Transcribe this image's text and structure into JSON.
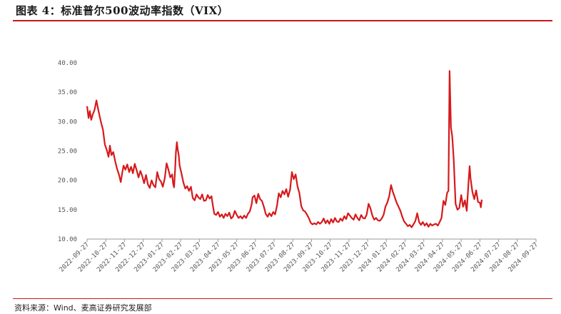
{
  "header": {
    "title": "图表 4：标准普尔500波动率指数（VIX）"
  },
  "footer": {
    "source": "资料来源：Wind、麦高证券研究发展部"
  },
  "chart_data": {
    "type": "line",
    "title": "图表 4：标准普尔500波动率指数（VIX）",
    "xlabel": "",
    "ylabel": "",
    "ylim": [
      10,
      40
    ],
    "yticks": [
      "40.00",
      "35.00",
      "30.00",
      "25.00",
      "20.00",
      "15.00",
      "10.00"
    ],
    "ytick_values": [
      40,
      35,
      30,
      25,
      20,
      15,
      10
    ],
    "x_ticks": [
      "2022-09-27",
      "2022-10-27",
      "2022-11-27",
      "2022-12-27",
      "2023-01-27",
      "2023-02-27",
      "2023-03-27",
      "2023-04-27",
      "2023-05-27",
      "2023-06-27",
      "2023-07-27",
      "2023-08-27",
      "2023-09-27",
      "2023-10-27",
      "2023-11-27",
      "2023-12-27",
      "2024-01-27",
      "2024-02-27",
      "2024-03-27",
      "2024-04-27",
      "2024-05-27",
      "2024-06-27",
      "2024-07-27",
      "2024-08-27",
      "2024-09-27"
    ],
    "grid": false,
    "legend": "none",
    "line_color": "#d7191c",
    "series": [
      {
        "values": [
          [
            0.0,
            32.6
          ],
          [
            0.08,
            30.6
          ],
          [
            0.15,
            31.8
          ],
          [
            0.22,
            30.3
          ],
          [
            0.3,
            31.2
          ],
          [
            0.4,
            32.0
          ],
          [
            0.5,
            33.6
          ],
          [
            0.58,
            32.3
          ],
          [
            0.66,
            31.1
          ],
          [
            0.75,
            29.8
          ],
          [
            0.85,
            28.6
          ],
          [
            0.95,
            26.1
          ],
          [
            1.05,
            25.2
          ],
          [
            1.15,
            24.0
          ],
          [
            1.22,
            25.9
          ],
          [
            1.3,
            24.3
          ],
          [
            1.4,
            24.8
          ],
          [
            1.5,
            23.3
          ],
          [
            1.6,
            22.0
          ],
          [
            1.7,
            21.0
          ],
          [
            1.8,
            19.7
          ],
          [
            1.88,
            21.3
          ],
          [
            1.95,
            22.5
          ],
          [
            2.05,
            21.8
          ],
          [
            2.15,
            22.7
          ],
          [
            2.25,
            21.4
          ],
          [
            2.35,
            22.3
          ],
          [
            2.45,
            21.2
          ],
          [
            2.55,
            22.8
          ],
          [
            2.65,
            21.7
          ],
          [
            2.75,
            20.5
          ],
          [
            2.85,
            21.6
          ],
          [
            2.95,
            20.7
          ],
          [
            3.05,
            19.5
          ],
          [
            3.15,
            20.9
          ],
          [
            3.25,
            19.3
          ],
          [
            3.35,
            18.7
          ],
          [
            3.45,
            20.0
          ],
          [
            3.55,
            19.2
          ],
          [
            3.65,
            18.8
          ],
          [
            3.75,
            21.4
          ],
          [
            3.85,
            20.2
          ],
          [
            3.95,
            19.8
          ],
          [
            4.05,
            18.9
          ],
          [
            4.15,
            20.3
          ],
          [
            4.25,
            22.9
          ],
          [
            4.35,
            21.8
          ],
          [
            4.45,
            20.5
          ],
          [
            4.55,
            21.0
          ],
          [
            4.6,
            19.4
          ],
          [
            4.65,
            18.8
          ],
          [
            4.7,
            21.5
          ],
          [
            4.75,
            24.8
          ],
          [
            4.8,
            26.5
          ],
          [
            4.85,
            25.2
          ],
          [
            4.9,
            24.3
          ],
          [
            4.95,
            22.5
          ],
          [
            5.05,
            21.1
          ],
          [
            5.15,
            19.6
          ],
          [
            5.25,
            18.6
          ],
          [
            5.35,
            19.0
          ],
          [
            5.45,
            18.2
          ],
          [
            5.55,
            18.9
          ],
          [
            5.65,
            17.0
          ],
          [
            5.75,
            16.6
          ],
          [
            5.85,
            17.6
          ],
          [
            5.95,
            17.1
          ],
          [
            6.05,
            16.8
          ],
          [
            6.15,
            17.6
          ],
          [
            6.25,
            16.5
          ],
          [
            6.35,
            16.6
          ],
          [
            6.45,
            17.5
          ],
          [
            6.55,
            16.9
          ],
          [
            6.65,
            17.3
          ],
          [
            6.72,
            15.8
          ],
          [
            6.8,
            14.3
          ],
          [
            6.9,
            14.1
          ],
          [
            7.0,
            14.6
          ],
          [
            7.1,
            13.8
          ],
          [
            7.2,
            14.2
          ],
          [
            7.3,
            13.6
          ],
          [
            7.4,
            14.3
          ],
          [
            7.5,
            13.9
          ],
          [
            7.6,
            14.5
          ],
          [
            7.7,
            13.5
          ],
          [
            7.8,
            13.8
          ],
          [
            7.9,
            14.8
          ],
          [
            8.0,
            14.1
          ],
          [
            8.1,
            13.6
          ],
          [
            8.2,
            13.9
          ],
          [
            8.3,
            13.5
          ],
          [
            8.4,
            14.0
          ],
          [
            8.5,
            13.6
          ],
          [
            8.6,
            14.3
          ],
          [
            8.7,
            14.7
          ],
          [
            8.8,
            15.9
          ],
          [
            8.85,
            17.1
          ],
          [
            8.95,
            17.4
          ],
          [
            9.05,
            16.1
          ],
          [
            9.15,
            17.7
          ],
          [
            9.25,
            16.8
          ],
          [
            9.35,
            16.5
          ],
          [
            9.45,
            15.5
          ],
          [
            9.55,
            14.3
          ],
          [
            9.65,
            13.8
          ],
          [
            9.75,
            14.4
          ],
          [
            9.85,
            13.9
          ],
          [
            9.95,
            14.6
          ],
          [
            10.05,
            14.2
          ],
          [
            10.15,
            15.6
          ],
          [
            10.25,
            17.8
          ],
          [
            10.35,
            17.1
          ],
          [
            10.45,
            18.2
          ],
          [
            10.55,
            17.6
          ],
          [
            10.65,
            18.5
          ],
          [
            10.75,
            17.2
          ],
          [
            10.85,
            18.4
          ],
          [
            10.95,
            21.4
          ],
          [
            11.05,
            20.2
          ],
          [
            11.15,
            21.0
          ],
          [
            11.25,
            19.0
          ],
          [
            11.35,
            17.8
          ],
          [
            11.45,
            15.6
          ],
          [
            11.55,
            14.9
          ],
          [
            11.65,
            14.7
          ],
          [
            11.75,
            14.2
          ],
          [
            11.85,
            13.6
          ],
          [
            11.95,
            12.8
          ],
          [
            12.05,
            12.5
          ],
          [
            12.15,
            12.7
          ],
          [
            12.25,
            12.5
          ],
          [
            12.35,
            12.9
          ],
          [
            12.45,
            12.6
          ],
          [
            12.55,
            12.9
          ],
          [
            12.65,
            13.5
          ],
          [
            12.75,
            12.7
          ],
          [
            12.85,
            13.2
          ],
          [
            12.95,
            12.6
          ],
          [
            13.05,
            13.4
          ],
          [
            13.15,
            12.8
          ],
          [
            13.25,
            13.6
          ],
          [
            13.35,
            13.0
          ],
          [
            13.45,
            12.9
          ],
          [
            13.55,
            13.5
          ],
          [
            13.65,
            13.1
          ],
          [
            13.75,
            13.9
          ],
          [
            13.85,
            13.4
          ],
          [
            13.95,
            14.4
          ],
          [
            14.05,
            14.0
          ],
          [
            14.15,
            13.6
          ],
          [
            14.25,
            13.3
          ],
          [
            14.35,
            14.2
          ],
          [
            14.45,
            13.6
          ],
          [
            14.55,
            13.2
          ],
          [
            14.65,
            14.1
          ],
          [
            14.75,
            13.6
          ],
          [
            14.85,
            13.5
          ],
          [
            14.95,
            14.2
          ],
          [
            15.05,
            16.0
          ],
          [
            15.15,
            15.2
          ],
          [
            15.25,
            14.0
          ],
          [
            15.35,
            13.3
          ],
          [
            15.45,
            13.6
          ],
          [
            15.55,
            13.2
          ],
          [
            15.65,
            13.1
          ],
          [
            15.75,
            13.5
          ],
          [
            15.85,
            14.1
          ],
          [
            15.95,
            15.5
          ],
          [
            16.05,
            16.2
          ],
          [
            16.15,
            17.3
          ],
          [
            16.25,
            19.2
          ],
          [
            16.35,
            18.0
          ],
          [
            16.45,
            17.1
          ],
          [
            16.55,
            16.2
          ],
          [
            16.65,
            15.5
          ],
          [
            16.75,
            14.8
          ],
          [
            16.85,
            13.8
          ],
          [
            16.95,
            13.0
          ],
          [
            17.05,
            12.6
          ],
          [
            17.15,
            12.2
          ],
          [
            17.25,
            12.4
          ],
          [
            17.35,
            12.0
          ],
          [
            17.45,
            12.5
          ],
          [
            17.55,
            13.1
          ],
          [
            17.65,
            14.4
          ],
          [
            17.75,
            12.9
          ],
          [
            17.85,
            12.4
          ],
          [
            17.95,
            12.9
          ],
          [
            18.05,
            12.3
          ],
          [
            18.15,
            12.7
          ],
          [
            18.25,
            12.1
          ],
          [
            18.35,
            12.6
          ],
          [
            18.45,
            12.3
          ],
          [
            18.55,
            12.5
          ],
          [
            18.65,
            12.6
          ],
          [
            18.75,
            12.3
          ],
          [
            18.85,
            12.9
          ],
          [
            18.95,
            13.6
          ],
          [
            19.05,
            16.5
          ],
          [
            19.15,
            15.8
          ],
          [
            19.25,
            17.9
          ],
          [
            19.32,
            18.2
          ],
          [
            19.38,
            38.6
          ],
          [
            19.45,
            29.0
          ],
          [
            19.52,
            27.5
          ],
          [
            19.6,
            23.5
          ],
          [
            19.7,
            16.0
          ],
          [
            19.8,
            15.0
          ],
          [
            19.9,
            15.3
          ],
          [
            20.0,
            17.5
          ],
          [
            20.1,
            15.5
          ],
          [
            20.2,
            16.6
          ],
          [
            20.3,
            14.8
          ],
          [
            20.4,
            20.0
          ],
          [
            20.45,
            22.4
          ],
          [
            20.5,
            20.3
          ],
          [
            20.6,
            18.0
          ],
          [
            20.7,
            16.8
          ],
          [
            20.8,
            18.3
          ],
          [
            20.9,
            16.3
          ],
          [
            21.0,
            16.2
          ],
          [
            21.05,
            15.4
          ],
          [
            21.1,
            16.7
          ]
        ]
      }
    ]
  }
}
